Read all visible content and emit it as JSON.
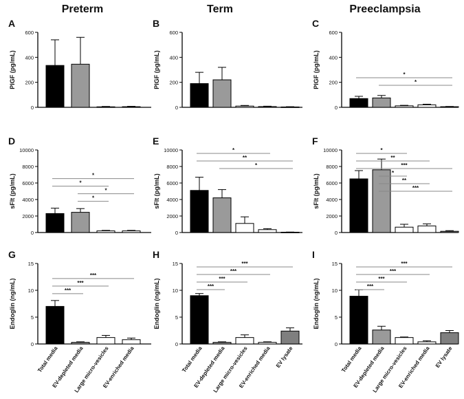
{
  "columns": [
    "Preterm",
    "Term",
    "Preeclampsia"
  ],
  "colors": {
    "Total media": "#000000",
    "EV-depleted media": "#9a9a9a",
    "Large micro-vesicles": "#ffffff",
    "EV-enriched media": "#ffffff",
    "EV lysate": "#7f7f7f"
  },
  "chart_data": [
    {
      "panel": "A",
      "type": "bar",
      "ylabel": "PlGF  (pg/mL)",
      "ylim": [
        0,
        600
      ],
      "yticks": [
        0,
        200,
        400,
        600
      ],
      "categories": [
        "Total media",
        "EV-depleted media",
        "Large micro-vesicles",
        "EV-enriched media"
      ],
      "values": [
        335,
        345,
        4,
        5
      ],
      "errors": [
        205,
        215,
        3,
        3
      ],
      "brackets": []
    },
    {
      "panel": "B",
      "type": "bar",
      "ylabel": "PlGF  (pg/mL)",
      "ylim": [
        0,
        600
      ],
      "yticks": [
        0,
        200,
        400,
        600
      ],
      "categories": [
        "Total media",
        "EV-depleted media",
        "Large micro-vesicles",
        "EV-enriched media",
        "EV lysate"
      ],
      "values": [
        190,
        220,
        10,
        6,
        3
      ],
      "errors": [
        90,
        100,
        5,
        3,
        2
      ],
      "brackets": []
    },
    {
      "panel": "C",
      "type": "bar",
      "ylabel": "PlGF  (pg/mL)",
      "ylim": [
        0,
        600
      ],
      "yticks": [
        0,
        200,
        400,
        600
      ],
      "categories": [
        "Total media",
        "EV-depleted media",
        "Large micro-vesicles",
        "EV-enriched media",
        "EV lysate"
      ],
      "values": [
        70,
        75,
        12,
        20,
        5
      ],
      "errors": [
        18,
        20,
        4,
        5,
        2
      ],
      "brackets": [
        {
          "from": 0,
          "to": 4,
          "label": "*"
        },
        {
          "from": 1,
          "to": 4,
          "label": "*"
        }
      ]
    },
    {
      "panel": "D",
      "type": "bar",
      "ylabel": "sFlt (pg/mL)",
      "ylim": [
        0,
        10000
      ],
      "yticks": [
        0,
        2000,
        4000,
        6000,
        8000,
        10000
      ],
      "categories": [
        "Total media",
        "EV-depleted media",
        "Large micro-vesicles",
        "EV-enriched media"
      ],
      "values": [
        2300,
        2450,
        200,
        200
      ],
      "errors": [
        650,
        450,
        60,
        60
      ],
      "brackets": [
        {
          "from": 0,
          "to": 3,
          "label": "*"
        },
        {
          "from": 0,
          "to": 2,
          "label": "*"
        },
        {
          "from": 1,
          "to": 3,
          "label": "*"
        },
        {
          "from": 1,
          "to": 2,
          "label": "*"
        }
      ]
    },
    {
      "panel": "E",
      "type": "bar",
      "ylabel": "sFlt (pg/mL)",
      "ylim": [
        0,
        10000
      ],
      "yticks": [
        0,
        2000,
        4000,
        6000,
        8000,
        10000
      ],
      "categories": [
        "Total media",
        "EV-depleted media",
        "Large micro-vesicles",
        "EV-enriched media",
        "EV lysate"
      ],
      "values": [
        5100,
        4200,
        1100,
        350,
        40
      ],
      "errors": [
        1600,
        1000,
        800,
        120,
        20
      ],
      "brackets": [
        {
          "from": 0,
          "to": 3,
          "label": "*"
        },
        {
          "from": 0,
          "to": 4,
          "label": "**"
        },
        {
          "from": 1,
          "to": 4,
          "label": "*"
        }
      ]
    },
    {
      "panel": "F",
      "type": "bar",
      "ylabel": "sFlt (pg/mL)",
      "ylim": [
        0,
        10000
      ],
      "yticks": [
        0,
        2000,
        4000,
        6000,
        8000,
        10000
      ],
      "categories": [
        "Total media",
        "EV-depleted media",
        "Large micro-vesicles",
        "EV-enriched media",
        "EV lysate"
      ],
      "values": [
        6500,
        7600,
        650,
        800,
        150
      ],
      "errors": [
        1000,
        1300,
        350,
        250,
        80
      ],
      "brackets": [
        {
          "from": 0,
          "to": 2,
          "label": "*"
        },
        {
          "from": 0,
          "to": 3,
          "label": "**"
        },
        {
          "from": 0,
          "to": 4,
          "label": "***"
        },
        {
          "from": 1,
          "to": 2,
          "label": "*"
        },
        {
          "from": 1,
          "to": 3,
          "label": "**"
        },
        {
          "from": 1,
          "to": 4,
          "label": "***"
        }
      ]
    },
    {
      "panel": "G",
      "type": "bar",
      "ylabel": "Endoglin (ng/mL)",
      "ylim": [
        0,
        15
      ],
      "yticks": [
        0,
        5,
        10,
        15
      ],
      "categories": [
        "Total media",
        "EV-depleted media",
        "Large micro-vesicles",
        "EV-enriched media"
      ],
      "values": [
        7.0,
        0.3,
        1.2,
        0.8
      ],
      "errors": [
        1.1,
        0.1,
        0.4,
        0.3
      ],
      "brackets": [
        {
          "from": 0,
          "to": 3,
          "label": "***"
        },
        {
          "from": 0,
          "to": 2,
          "label": "***"
        },
        {
          "from": 0,
          "to": 1,
          "label": "***"
        }
      ]
    },
    {
      "panel": "H",
      "type": "bar",
      "ylabel": "Endoglin (ng/mL)",
      "ylim": [
        0,
        15
      ],
      "yticks": [
        0,
        5,
        10,
        15
      ],
      "categories": [
        "Total media",
        "EV-depleted media",
        "Large micro-vesicles",
        "EV-enriched media",
        "EV lysate"
      ],
      "values": [
        9.0,
        0.3,
        1.2,
        0.3,
        2.4
      ],
      "errors": [
        0.4,
        0.1,
        0.5,
        0.1,
        0.6
      ],
      "brackets": [
        {
          "from": 0,
          "to": 4,
          "label": "***"
        },
        {
          "from": 0,
          "to": 3,
          "label": "***"
        },
        {
          "from": 0,
          "to": 2,
          "label": "***"
        },
        {
          "from": 0,
          "to": 1,
          "label": "***"
        }
      ]
    },
    {
      "panel": "I",
      "type": "bar",
      "ylabel": "Endoglin (ng/mL)",
      "ylim": [
        0,
        15
      ],
      "yticks": [
        0,
        5,
        10,
        15
      ],
      "categories": [
        "Total media",
        "EV-depleted media",
        "Large micro-vesicles",
        "EV-enriched media",
        "EV lysate"
      ],
      "values": [
        8.9,
        2.6,
        1.2,
        0.4,
        2.1
      ],
      "errors": [
        1.2,
        0.7,
        0.1,
        0.2,
        0.4
      ],
      "brackets": [
        {
          "from": 0,
          "to": 4,
          "label": "***"
        },
        {
          "from": 0,
          "to": 3,
          "label": "***"
        },
        {
          "from": 0,
          "to": 2,
          "label": "***"
        },
        {
          "from": 0,
          "to": 1,
          "label": "***"
        }
      ]
    }
  ]
}
